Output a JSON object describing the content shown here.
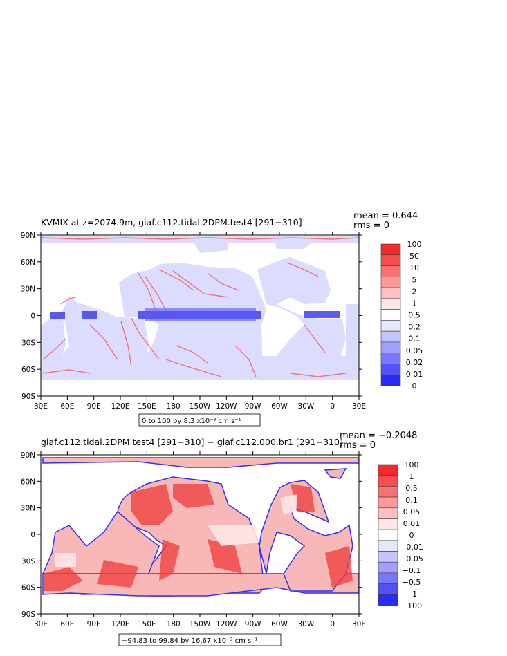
{
  "chart_data": [
    {
      "type": "heatmap",
      "title": "KVMIX at z=2074.9m, giaf.c112.tidal.2DPM.test4 [291−310]",
      "stats": {
        "mean": "mean = 0.644",
        "rms": "rms = 0"
      },
      "x_ticks": [
        "30E",
        "60E",
        "90E",
        "120E",
        "150E",
        "180",
        "150W",
        "120W",
        "90W",
        "60W",
        "30W",
        "0",
        "30E"
      ],
      "y_ticks": [
        "90N",
        "60N",
        "30N",
        "0",
        "30S",
        "60S",
        "90S"
      ],
      "range_note": "0 to 100 by 8.3 x10⁻³ cm s⁻¹",
      "colorbar": {
        "levels": [
          "100",
          "50",
          "10",
          "5",
          "2",
          "1",
          "0.5",
          "0.2",
          "0.1",
          "0.05",
          "0.02",
          "0.01",
          "0"
        ],
        "colors": [
          "#f42a2a",
          "#f64e4e",
          "#f87272",
          "#fa9a9a",
          "#fcc0c0",
          "#fee6e6",
          "#ffffff",
          "#e6e6fe",
          "#c4c4fc",
          "#a0a0fa",
          "#7878f8",
          "#5252f6",
          "#2a2af4"
        ]
      },
      "land_color": "#ffffff",
      "ocean_base": "#dcdcff",
      "highlight": "#f06262",
      "equator": "#4a4af0"
    },
    {
      "type": "heatmap",
      "title": "giaf.c112.tidal.2DPM.test4 [291−310] − giaf.c112.000.br1 [291−310]",
      "stats": {
        "mean": "mean = −0.2048",
        "rms": "rms = 0"
      },
      "x_ticks": [
        "30E",
        "60E",
        "90E",
        "120E",
        "150E",
        "180",
        "150W",
        "120W",
        "90W",
        "60W",
        "30W",
        "0",
        "30E"
      ],
      "y_ticks": [
        "90N",
        "60N",
        "30N",
        "0",
        "30S",
        "60S",
        "90S"
      ],
      "range_note": "−94.83 to 99.84 by 16.67 x10⁻³ cm s⁻¹",
      "colorbar": {
        "levels": [
          "100",
          "1",
          "0.5",
          "0.1",
          "0.05",
          "0.01",
          "0",
          "−0.01",
          "−0.05",
          "−0.1",
          "−0.5",
          "−1",
          "−100"
        ],
        "colors": [
          "#f42a2a",
          "#f64e4e",
          "#f87272",
          "#fa9a9a",
          "#fcc0c0",
          "#fee6e6",
          "#ffffff",
          "#e6e6fe",
          "#c4c4fc",
          "#a0a0fa",
          "#7878f8",
          "#5252f6",
          "#2a2af4"
        ]
      },
      "land_color": "#ffffff",
      "ocean_base": "#f8b8b8",
      "highlight": "#f03a3a",
      "coast": "#3030f0"
    }
  ]
}
